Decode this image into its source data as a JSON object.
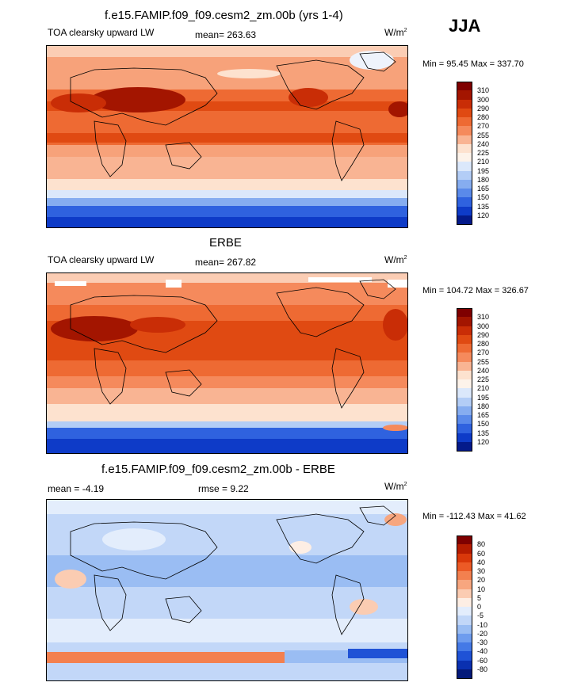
{
  "season": "JJA",
  "panels": [
    {
      "title": "f.e15.FAMIP.f09_f09.cesm2_zm.00b (yrs 1-4)",
      "left_label": "TOA clearsky upward LW",
      "center_label": "mean= 263.63",
      "units": "W/m",
      "units_sup": "2",
      "minmax": "Min =  95.45 Max = 337.70",
      "colorbar": {
        "labels": [
          "310",
          "300",
          "290",
          "280",
          "270",
          "255",
          "240",
          "225",
          "210",
          "195",
          "180",
          "165",
          "150",
          "135",
          "120"
        ],
        "colors": [
          "#7f0000",
          "#a31500",
          "#c92d06",
          "#e04a12",
          "#ee6a33",
          "#f58a5c",
          "#f9b493",
          "#fde2cf",
          "#fdf3ea",
          "#dbe8fb",
          "#b3cdf6",
          "#86adf0",
          "#5a8aea",
          "#2f62df",
          "#0e3bc8",
          "#041a8a"
        ]
      }
    },
    {
      "title": "ERBE",
      "left_label": "TOA clearsky upward LW",
      "center_label": "mean= 267.82",
      "units": "W/m",
      "units_sup": "2",
      "minmax": "Min = 104.72 Max = 326.67",
      "colorbar": {
        "labels": [
          "310",
          "300",
          "290",
          "280",
          "270",
          "255",
          "240",
          "225",
          "210",
          "195",
          "180",
          "165",
          "150",
          "135",
          "120"
        ],
        "colors": [
          "#7f0000",
          "#a31500",
          "#c92d06",
          "#e04a12",
          "#ee6a33",
          "#f58a5c",
          "#f9b493",
          "#fde2cf",
          "#fdf3ea",
          "#dbe8fb",
          "#b3cdf6",
          "#86adf0",
          "#5a8aea",
          "#2f62df",
          "#0e3bc8",
          "#041a8a"
        ]
      }
    },
    {
      "title": "f.e15.FAMIP.f09_f09.cesm2_zm.00b - ERBE",
      "left_label": "mean =  -4.19",
      "center_label": "rmse =   9.22",
      "units": "W/m",
      "units_sup": "2",
      "minmax": "Min = -112.43 Max =  41.62",
      "colorbar": {
        "labels": [
          "80",
          "60",
          "40",
          "30",
          "20",
          "10",
          "5",
          "0",
          "-5",
          "-10",
          "-20",
          "-30",
          "-40",
          "-60",
          "-80"
        ],
        "colors": [
          "#7f0000",
          "#b51c00",
          "#d9380a",
          "#ec5a26",
          "#f3804f",
          "#f7a67f",
          "#fbccb2",
          "#fdeee4",
          "#e3edfc",
          "#c2d7f8",
          "#9abdf3",
          "#6e9cee",
          "#4479e6",
          "#1f52d6",
          "#0a30b0",
          "#041a7a"
        ]
      }
    }
  ],
  "chart_data": [
    {
      "type": "heatmap",
      "title": "f.e15.FAMIP.f09_f09.cesm2_zm.00b (yrs 1-4)",
      "variable": "TOA clearsky upward LW",
      "units": "W/m2",
      "mean": 263.63,
      "min": 95.45,
      "max": 337.7,
      "contour_levels": [
        120,
        135,
        150,
        165,
        180,
        195,
        210,
        225,
        240,
        255,
        270,
        280,
        290,
        300,
        310
      ]
    },
    {
      "type": "heatmap",
      "title": "ERBE",
      "variable": "TOA clearsky upward LW",
      "units": "W/m2",
      "mean": 267.82,
      "min": 104.72,
      "max": 326.67,
      "contour_levels": [
        120,
        135,
        150,
        165,
        180,
        195,
        210,
        225,
        240,
        255,
        270,
        280,
        290,
        300,
        310
      ]
    },
    {
      "type": "heatmap",
      "title": "f.e15.FAMIP.f09_f09.cesm2_zm.00b - ERBE",
      "units": "W/m2",
      "mean": -4.19,
      "rmse": 9.22,
      "min": -112.43,
      "max": 41.62,
      "contour_levels": [
        -80,
        -60,
        -40,
        -30,
        -20,
        -10,
        -5,
        0,
        5,
        10,
        20,
        30,
        40,
        60,
        80
      ]
    }
  ]
}
